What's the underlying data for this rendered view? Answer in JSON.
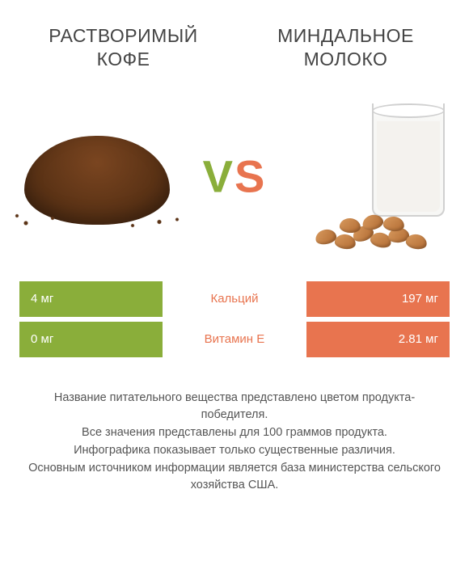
{
  "header": {
    "left_title": "Растворимый кофе",
    "right_title": "Миндальное молоко"
  },
  "vs": {
    "v": "V",
    "s": "S"
  },
  "colors": {
    "left": "#8aae3a",
    "right": "#e8744f",
    "label_win_left": "#8aae3a",
    "label_win_right": "#e8744f"
  },
  "rows": [
    {
      "left_value": "4 мг",
      "label": "Кальций",
      "right_value": "197 мг",
      "winner": "right"
    },
    {
      "left_value": "0 мг",
      "label": "Витамин E",
      "right_value": "2.81 мг",
      "winner": "right"
    }
  ],
  "footnote": "Название питательного вещества представлено цветом продукта-победителя.\nВсе значения представлены для 100 граммов продукта.\nИнфографика показывает только существенные различия.\nОсновным источником информации является база министерства сельского хозяйства США."
}
